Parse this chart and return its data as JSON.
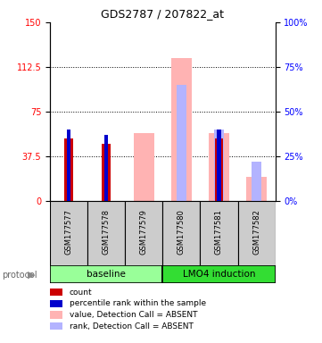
{
  "title": "GDS2787 / 207822_at",
  "samples": [
    "GSM177577",
    "GSM177578",
    "GSM177579",
    "GSM177580",
    "GSM177581",
    "GSM177582"
  ],
  "count_values": [
    52,
    48,
    null,
    null,
    52,
    null
  ],
  "percentile_values": [
    40,
    37,
    null,
    null,
    40,
    null
  ],
  "absent_value_values": [
    null,
    null,
    57,
    120,
    57,
    20
  ],
  "absent_rank_values": [
    null,
    null,
    null,
    65,
    40,
    22
  ],
  "ylim_left": [
    0,
    150
  ],
  "ylim_right": [
    0,
    100
  ],
  "yticks_left": [
    0,
    37.5,
    75,
    112.5,
    150
  ],
  "ytick_labels_left": [
    "0",
    "37.5",
    "75",
    "112.5",
    "150"
  ],
  "yticks_right": [
    0,
    25,
    50,
    75,
    100
  ],
  "ytick_labels_right": [
    "0%",
    "25%",
    "50%",
    "75%",
    "100%"
  ],
  "count_color": "#cc0000",
  "percentile_color": "#0000cc",
  "absent_value_color": "#ffb3b3",
  "absent_rank_color": "#b3b3ff",
  "bg_color": "#ffffff",
  "sample_box_color": "#cccccc",
  "baseline_color": "#99ff99",
  "lmo4_color": "#33dd33",
  "legend_items": [
    {
      "label": "count",
      "color": "#cc0000"
    },
    {
      "label": "percentile rank within the sample",
      "color": "#0000cc"
    },
    {
      "label": "value, Detection Call = ABSENT",
      "color": "#ffb3b3"
    },
    {
      "label": "rank, Detection Call = ABSENT",
      "color": "#b3b3ff"
    }
  ]
}
